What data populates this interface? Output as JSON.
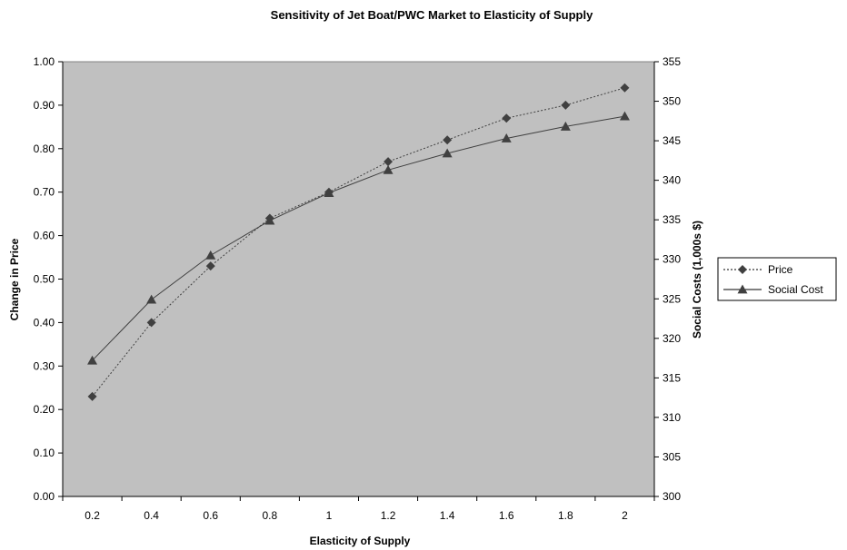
{
  "chart_data": {
    "type": "line",
    "title": "Sensitivity of Jet Boat/PWC Market to Elasticity of Supply",
    "xlabel": "Elasticity of Supply",
    "ylabel": "Change in Price",
    "y2label": "Social Costs (1,000s $)",
    "categories": [
      "0.2",
      "0.4",
      "0.6",
      "0.8",
      "1",
      "1.2",
      "1.4",
      "1.6",
      "1.8",
      "2"
    ],
    "ylim": [
      0,
      1
    ],
    "y2lim": [
      300,
      355
    ],
    "y_ticks": [
      "0.00",
      "0.10",
      "0.20",
      "0.30",
      "0.40",
      "0.50",
      "0.60",
      "0.70",
      "0.80",
      "0.90",
      "1.00"
    ],
    "y2_ticks": [
      "300",
      "305",
      "310",
      "315",
      "320",
      "325",
      "330",
      "335",
      "340",
      "345",
      "350",
      "355"
    ],
    "plot_background": "#c0c0c0",
    "grid": false,
    "legend_position": "right",
    "series": [
      {
        "name": "Price",
        "axis": "left",
        "marker": "diamond",
        "line_style": "dotted",
        "color": "#404040",
        "values": [
          0.23,
          0.4,
          0.53,
          0.64,
          0.7,
          0.77,
          0.82,
          0.87,
          0.9,
          0.94
        ]
      },
      {
        "name": "Social Cost",
        "axis": "right",
        "marker": "triangle",
        "line_style": "solid",
        "color": "#404040",
        "values": [
          317.2,
          324.9,
          330.5,
          334.9,
          338.4,
          341.3,
          343.4,
          345.3,
          346.8,
          348.1
        ]
      }
    ]
  }
}
